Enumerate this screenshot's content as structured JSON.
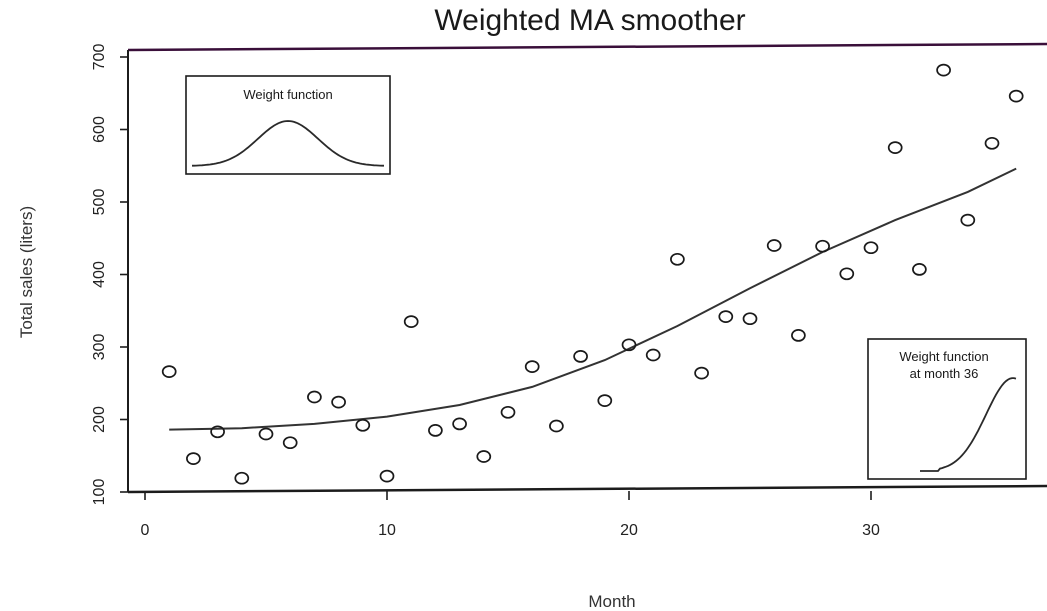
{
  "chart_data": {
    "type": "scatter",
    "title": "Weighted MA smoother",
    "xlabel": "Month",
    "ylabel": "Total sales (liters)",
    "xlim": [
      -0.5,
      37
    ],
    "ylim": [
      100,
      700
    ],
    "xticks": [
      0,
      10,
      20,
      30
    ],
    "yticks": [
      100,
      200,
      300,
      400,
      500,
      600,
      700
    ],
    "grid": false,
    "series": [
      {
        "kind": "points",
        "marker": "open-circle",
        "x": [
          1,
          2,
          3,
          4,
          5,
          6,
          7,
          8,
          9,
          10,
          11,
          12,
          13,
          14,
          15,
          16,
          17,
          18,
          19,
          20,
          21,
          22,
          23,
          24,
          25,
          26,
          27,
          28,
          29,
          30,
          31,
          32,
          33,
          34,
          35,
          36
        ],
        "y": [
          266,
          146,
          183,
          119,
          180,
          168,
          231,
          224,
          192,
          122,
          335,
          185,
          194,
          149,
          210,
          273,
          191,
          287,
          226,
          303,
          289,
          421,
          264,
          342,
          339,
          440,
          316,
          439,
          401,
          437,
          575,
          407,
          682,
          475,
          581,
          646
        ]
      },
      {
        "kind": "line",
        "x": [
          1,
          4,
          7,
          10,
          13,
          16,
          19,
          22,
          25,
          28,
          31,
          34,
          36
        ],
        "y": [
          186,
          188,
          194,
          204,
          220,
          245,
          282,
          329,
          381,
          431,
          475,
          514,
          546
        ]
      }
    ],
    "insets": [
      {
        "title_lines": [
          "Weight function"
        ],
        "shape": "bell"
      },
      {
        "title_lines": [
          "Weight function",
          "at month 36"
        ],
        "shape": "half-bell"
      }
    ]
  }
}
